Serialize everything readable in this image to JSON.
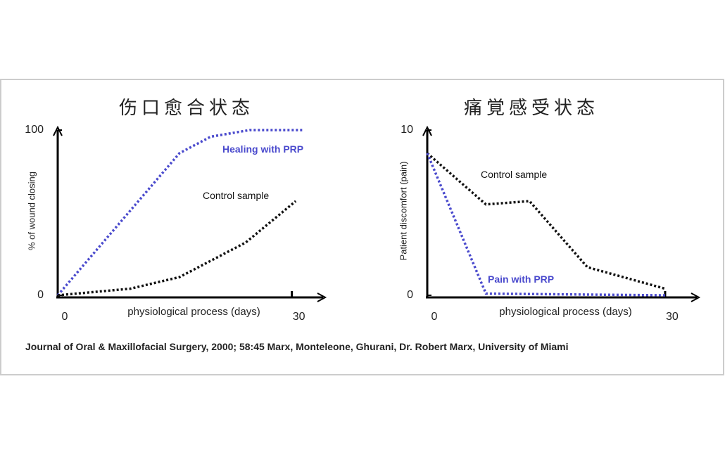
{
  "chart_data": [
    {
      "type": "line",
      "title": "伤口愈合状态",
      "ylabel": "% of wound closing",
      "xlabel": "physiological process (days)",
      "xlim": [
        0,
        34
      ],
      "xticks": [
        0,
        30
      ],
      "ylim": [
        0,
        100
      ],
      "yticks": [
        0,
        100
      ],
      "series": [
        {
          "name": "Healing with PRP",
          "color": "#4a4acd",
          "x": [
            0,
            15.6,
            19.6,
            24.6,
            31.5
          ],
          "values": [
            0,
            86,
            96,
            100,
            100
          ]
        },
        {
          "name": "Control sample",
          "color": "#111111",
          "x": [
            0,
            9.3,
            15.6,
            24.1,
            30.5
          ],
          "values": [
            0,
            4,
            11,
            32,
            57
          ]
        }
      ]
    },
    {
      "type": "line",
      "title": "痛覚感受状态",
      "ylabel": "Patient discomfort (pain)",
      "xlabel": "physiological process (days)",
      "xlim": [
        0,
        34
      ],
      "xticks": [
        0,
        30
      ],
      "ylim": [
        0,
        10
      ],
      "yticks": [
        0,
        10
      ],
      "series": [
        {
          "name": "Control sample",
          "color": "#111111",
          "x": [
            0,
            7.4,
            12.9,
            20.2,
            30
          ],
          "values": [
            8.6,
            5.5,
            5.7,
            1.7,
            0.4
          ]
        },
        {
          "name": "Pain with PRP",
          "color": "#4a4acd",
          "x": [
            0,
            7.4,
            30
          ],
          "values": [
            8.6,
            0.1,
            0
          ]
        }
      ]
    }
  ],
  "footer": "Journal of Oral & Maxillofacial Surgery, 2000; 58:45 Marx, Monteleone, Ghurani, Dr. Robert Marx, University of Miami"
}
